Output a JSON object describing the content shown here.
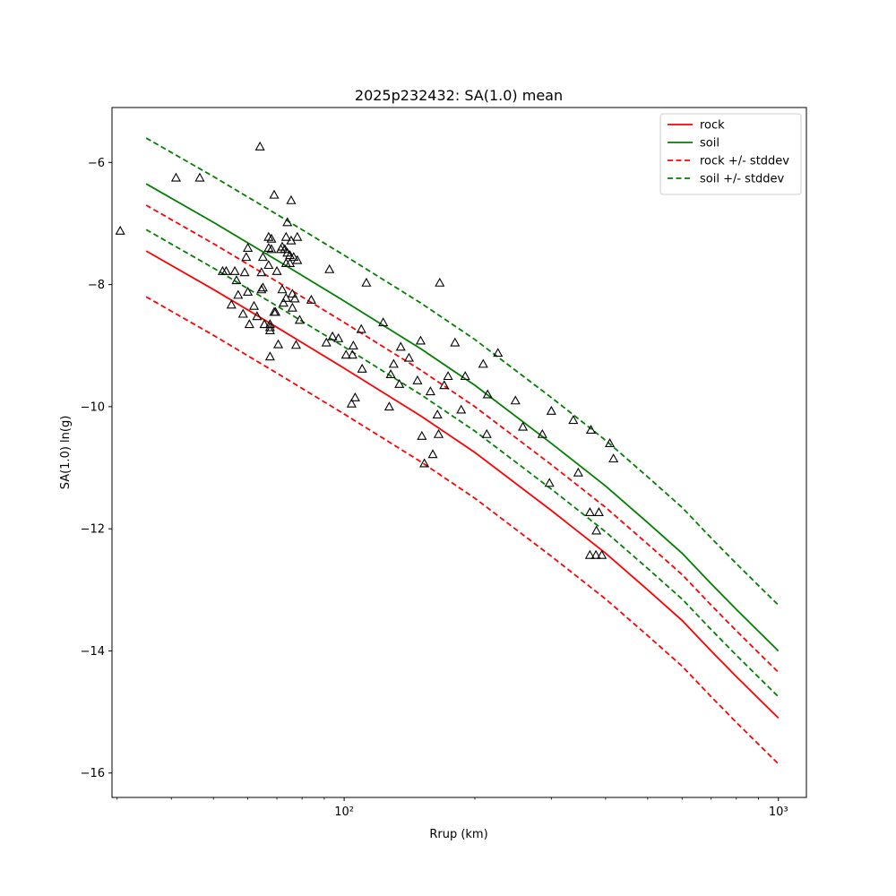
{
  "chart_data": {
    "type": "line",
    "title": "2025p232432: SA(1.0) mean",
    "xlabel": "Rrup (km)",
    "ylabel": "SA(1.0) ln(g)",
    "x_scale": "log",
    "xlim": [
      29.2,
      1160
    ],
    "ylim": [
      -16.4,
      -5.1
    ],
    "x_ticks": [
      {
        "value": 100,
        "label": "10²"
      },
      {
        "value": 1000,
        "label": "10³"
      }
    ],
    "y_ticks": [
      {
        "value": -6,
        "label": "−6"
      },
      {
        "value": -8,
        "label": "−8"
      },
      {
        "value": -10,
        "label": "−10"
      },
      {
        "value": -12,
        "label": "−12"
      },
      {
        "value": -14,
        "label": "−14"
      },
      {
        "value": -16,
        "label": "−16"
      }
    ],
    "grid": false,
    "legend_position": "top-right",
    "series": [
      {
        "name": "rock",
        "style": "solid",
        "color": "#ff0000",
        "x": [
          35,
          50,
          70,
          100,
          150,
          200,
          300,
          400,
          500,
          600,
          700,
          800,
          900,
          1000
        ],
        "y": [
          -7.45,
          -8.08,
          -8.7,
          -9.37,
          -10.15,
          -10.75,
          -11.7,
          -12.4,
          -13.0,
          -13.5,
          -14.0,
          -14.42,
          -14.78,
          -15.1
        ]
      },
      {
        "name": "soil",
        "style": "solid",
        "color": "#008000",
        "x": [
          35,
          50,
          70,
          100,
          150,
          200,
          300,
          400,
          500,
          600,
          700,
          800,
          900,
          1000
        ],
        "y": [
          -6.35,
          -6.98,
          -7.6,
          -8.27,
          -9.05,
          -9.65,
          -10.6,
          -11.3,
          -11.9,
          -12.4,
          -12.9,
          -13.32,
          -13.68,
          -14.0
        ]
      },
      {
        "name": "rock +/- stddev",
        "style": "dashed",
        "color": "#ff0000",
        "x": [
          35,
          50,
          70,
          100,
          150,
          200,
          300,
          400,
          500,
          600,
          700,
          800,
          900,
          1000
        ],
        "y": [
          -6.7,
          -7.33,
          -7.95,
          -8.62,
          -9.4,
          -10.0,
          -10.95,
          -11.65,
          -12.25,
          -12.75,
          -13.25,
          -13.67,
          -14.03,
          -14.35
        ]
      },
      {
        "style": "dashed",
        "color": "#ff0000",
        "x": [
          35,
          50,
          70,
          100,
          150,
          200,
          300,
          400,
          500,
          600,
          700,
          800,
          900,
          1000
        ],
        "y": [
          -8.2,
          -8.83,
          -9.45,
          -10.12,
          -10.9,
          -11.5,
          -12.45,
          -13.15,
          -13.75,
          -14.25,
          -14.75,
          -15.17,
          -15.53,
          -15.85
        ]
      },
      {
        "name": "soil +/- stddev",
        "style": "dashed",
        "color": "#008000",
        "x": [
          35,
          50,
          70,
          100,
          150,
          200,
          300,
          400,
          500,
          600,
          700,
          800,
          900,
          1000
        ],
        "y": [
          -5.6,
          -6.23,
          -6.85,
          -7.52,
          -8.3,
          -8.9,
          -9.85,
          -10.55,
          -11.15,
          -11.65,
          -12.15,
          -12.57,
          -12.93,
          -13.25
        ]
      },
      {
        "style": "dashed",
        "color": "#008000",
        "x": [
          35,
          50,
          70,
          100,
          150,
          200,
          300,
          400,
          500,
          600,
          700,
          800,
          900,
          1000
        ],
        "y": [
          -7.1,
          -7.73,
          -8.35,
          -9.02,
          -9.8,
          -10.4,
          -11.35,
          -12.05,
          -12.65,
          -13.15,
          -13.65,
          -14.07,
          -14.43,
          -14.75
        ]
      }
    ],
    "observations": {
      "marker": "triangle-open",
      "color": "#000000",
      "points": [
        [
          30.5,
          -7.12
        ],
        [
          41,
          -6.25
        ],
        [
          46.5,
          -6.25
        ],
        [
          52.5,
          -7.78
        ],
        [
          53.5,
          -7.78
        ],
        [
          55,
          -8.33
        ],
        [
          56,
          -7.78
        ],
        [
          56.5,
          -7.93
        ],
        [
          57,
          -8.17
        ],
        [
          58.5,
          -8.48
        ],
        [
          59,
          -7.8
        ],
        [
          59.5,
          -7.55
        ],
        [
          60,
          -7.4
        ],
        [
          60,
          -8.12
        ],
        [
          60.5,
          -8.65
        ],
        [
          62,
          -8.35
        ],
        [
          63,
          -8.52
        ],
        [
          64,
          -5.74
        ],
        [
          64.5,
          -7.8
        ],
        [
          64.5,
          -8.08
        ],
        [
          65,
          -7.55
        ],
        [
          65,
          -8.05
        ],
        [
          65.5,
          -8.65
        ],
        [
          67,
          -7.22
        ],
        [
          67,
          -7.4
        ],
        [
          67,
          -7.68
        ],
        [
          67.5,
          -8.65
        ],
        [
          67.5,
          -8.7
        ],
        [
          67.5,
          -8.75
        ],
        [
          67.5,
          -9.18
        ],
        [
          68,
          -7.25
        ],
        [
          68,
          -7.42
        ],
        [
          69,
          -8.45
        ],
        [
          69,
          -6.53
        ],
        [
          69.5,
          -8.45
        ],
        [
          70,
          -7.78
        ],
        [
          70.5,
          -8.98
        ],
        [
          71.5,
          -7.42
        ],
        [
          72,
          -7.38
        ],
        [
          72,
          -8.08
        ],
        [
          72.5,
          -8.3
        ],
        [
          73,
          -7.42
        ],
        [
          73.5,
          -7.22
        ],
        [
          73.5,
          -7.65
        ],
        [
          73.5,
          -8.22
        ],
        [
          74,
          -6.98
        ],
        [
          74,
          -7.48
        ],
        [
          75,
          -7.52
        ],
        [
          75,
          -7.65
        ],
        [
          75.5,
          -6.62
        ],
        [
          75.5,
          -7.28
        ],
        [
          76,
          -8.15
        ],
        [
          76,
          -8.38
        ],
        [
          76.5,
          -7.55
        ],
        [
          77,
          -8.23
        ],
        [
          77.5,
          -8.99
        ],
        [
          78,
          -7.22
        ],
        [
          78,
          -7.6
        ],
        [
          79,
          -8.58
        ],
        [
          84,
          -8.25
        ],
        [
          91,
          -8.95
        ],
        [
          92.5,
          -7.75
        ],
        [
          94,
          -8.85
        ],
        [
          97,
          -8.88
        ],
        [
          101,
          -9.15
        ],
        [
          104,
          -9.95
        ],
        [
          104.5,
          -9.15
        ],
        [
          105,
          -9.0
        ],
        [
          106,
          -9.85
        ],
        [
          109.5,
          -8.73
        ],
        [
          110,
          -9.38
        ],
        [
          112.5,
          -7.97
        ],
        [
          123,
          -8.62
        ],
        [
          127,
          -10.0
        ],
        [
          128,
          -9.47
        ],
        [
          130,
          -9.3
        ],
        [
          134,
          -9.63
        ],
        [
          135,
          -9.02
        ],
        [
          141,
          -9.2
        ],
        [
          147.5,
          -9.57
        ],
        [
          150,
          -8.92
        ],
        [
          151,
          -10.48
        ],
        [
          153,
          -10.93
        ],
        [
          158,
          -9.75
        ],
        [
          160,
          -10.78
        ],
        [
          164,
          -10.13
        ],
        [
          165,
          -10.45
        ],
        [
          166,
          -7.97
        ],
        [
          170,
          -9.65
        ],
        [
          173.5,
          -9.5
        ],
        [
          180,
          -8.95
        ],
        [
          186,
          -10.05
        ],
        [
          190,
          -9.5
        ],
        [
          209,
          -9.3
        ],
        [
          213,
          -10.45
        ],
        [
          214,
          -9.8
        ],
        [
          226,
          -9.12
        ],
        [
          248,
          -9.9
        ],
        [
          258,
          -10.33
        ],
        [
          286,
          -10.45
        ],
        [
          297,
          -11.25
        ],
        [
          300,
          -10.07
        ],
        [
          337,
          -10.22
        ],
        [
          346,
          -11.08
        ],
        [
          368,
          -11.73
        ],
        [
          370,
          -10.38
        ],
        [
          368,
          -12.43
        ],
        [
          380,
          -12.43
        ],
        [
          381,
          -12.03
        ],
        [
          386,
          -11.73
        ],
        [
          392,
          -12.43
        ],
        [
          409,
          -10.6
        ],
        [
          417,
          -10.85
        ]
      ]
    }
  }
}
